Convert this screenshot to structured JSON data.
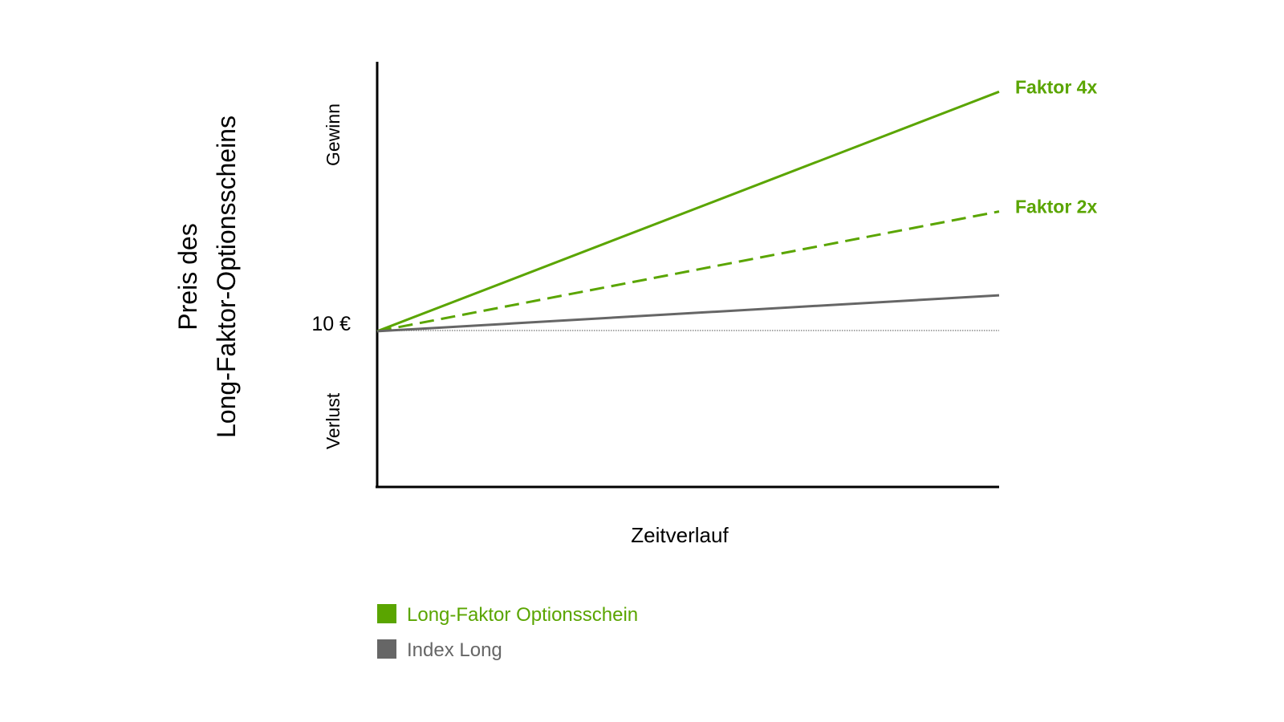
{
  "chart_data": {
    "type": "line",
    "title": "",
    "xlabel": "Zeitverlauf",
    "ylabel_lines": [
      "Preis des",
      "Long-Faktor-Optionsscheins"
    ],
    "y_region_labels": {
      "upper": "Gewinn",
      "lower": "Verlust"
    },
    "baseline_label": "10 €",
    "x": [
      0,
      1
    ],
    "series": [
      {
        "name": "Faktor 4x",
        "group": "Long-Faktor Optionsschein",
        "values": [
          0,
          4
        ],
        "style": "solid",
        "color": "#5aa500",
        "end_label": "Faktor 4x"
      },
      {
        "name": "Faktor 2x",
        "group": "Long-Faktor Optionsschein",
        "values": [
          0,
          2
        ],
        "style": "dashed",
        "color": "#5aa500",
        "end_label": "Faktor 2x"
      },
      {
        "name": "Index Long",
        "group": "Index Long",
        "values": [
          0,
          0.6
        ],
        "style": "solid",
        "color": "#666666",
        "end_label": ""
      }
    ],
    "ylim": [
      -2.6,
      4.5
    ],
    "legend": {
      "position": "bottom-left",
      "items": [
        {
          "label": "Long-Faktor Optionsschein",
          "color": "#5aa500"
        },
        {
          "label": "Index Long",
          "color": "#666666"
        }
      ]
    },
    "grid": false
  }
}
